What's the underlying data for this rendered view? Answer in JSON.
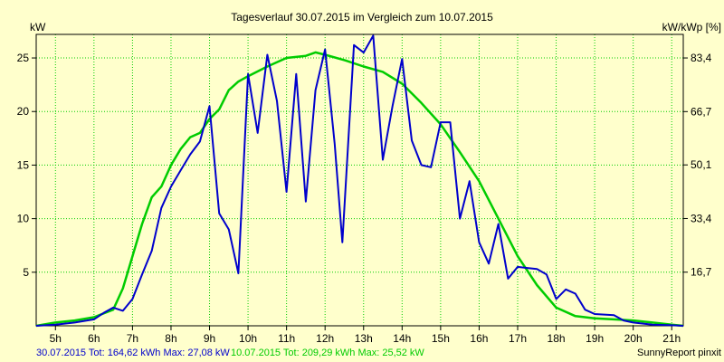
{
  "chart_data": {
    "type": "line",
    "title": "Tagesverlauf 30.07.2015 im Vergleich zum 10.07.2015",
    "ylabel_left": "kW",
    "ylabel_right": "kW/kWp [%]",
    "xlim": [
      4.5,
      21.3
    ],
    "ylim": [
      0,
      27.2
    ],
    "grid": true,
    "x_ticks": [
      5,
      6,
      7,
      8,
      9,
      10,
      11,
      12,
      13,
      14,
      15,
      16,
      17,
      18,
      19,
      20,
      21
    ],
    "x_tick_labels": [
      "5h",
      "6h",
      "7h",
      "8h",
      "9h",
      "10h",
      "11h",
      "12h",
      "13h",
      "14h",
      "15h",
      "16h",
      "17h",
      "18h",
      "19h",
      "20h",
      "21h"
    ],
    "y_ticks_left": [
      5,
      10,
      15,
      20,
      25
    ],
    "y_tick_labels_left": [
      "5",
      "10",
      "15",
      "20",
      "25"
    ],
    "y_ticks_right": [
      16.7,
      33.4,
      50.1,
      66.7,
      83.4
    ],
    "y_tick_labels_right": [
      "16,7",
      "33,4",
      "50,1",
      "66,7",
      "83,4"
    ],
    "right_axis_factor": 3.336,
    "series": [
      {
        "name": "30.07.2015",
        "color": "#0000cc",
        "summary": "30.07.2015 Tot: 164,62 kWh Max: 27,08 kW",
        "points": [
          [
            4.5,
            0
          ],
          [
            5.0,
            0.1
          ],
          [
            5.5,
            0.3
          ],
          [
            6.0,
            0.6
          ],
          [
            6.25,
            1.2
          ],
          [
            6.5,
            1.7
          ],
          [
            6.75,
            1.4
          ],
          [
            7.0,
            2.5
          ],
          [
            7.25,
            4.8
          ],
          [
            7.5,
            7.0
          ],
          [
            7.75,
            11.0
          ],
          [
            8.0,
            13.0
          ],
          [
            8.25,
            14.5
          ],
          [
            8.5,
            16.0
          ],
          [
            8.75,
            17.2
          ],
          [
            9.0,
            20.5
          ],
          [
            9.25,
            10.5
          ],
          [
            9.5,
            9.0
          ],
          [
            9.75,
            4.9
          ],
          [
            10.0,
            23.5
          ],
          [
            10.25,
            18.0
          ],
          [
            10.5,
            25.3
          ],
          [
            10.75,
            21.0
          ],
          [
            11.0,
            12.5
          ],
          [
            11.25,
            23.5
          ],
          [
            11.5,
            11.6
          ],
          [
            11.75,
            22.0
          ],
          [
            12.0,
            25.8
          ],
          [
            12.25,
            17.0
          ],
          [
            12.45,
            7.8
          ],
          [
            12.75,
            26.2
          ],
          [
            13.0,
            25.5
          ],
          [
            13.25,
            27.08
          ],
          [
            13.5,
            15.5
          ],
          [
            13.75,
            20.5
          ],
          [
            14.0,
            24.9
          ],
          [
            14.25,
            17.3
          ],
          [
            14.5,
            15.0
          ],
          [
            14.75,
            14.8
          ],
          [
            15.0,
            19.0
          ],
          [
            15.25,
            19.0
          ],
          [
            15.5,
            10.0
          ],
          [
            15.75,
            13.5
          ],
          [
            16.0,
            7.8
          ],
          [
            16.25,
            5.8
          ],
          [
            16.5,
            9.5
          ],
          [
            16.75,
            4.4
          ],
          [
            17.0,
            5.5
          ],
          [
            17.25,
            5.4
          ],
          [
            17.5,
            5.3
          ],
          [
            17.75,
            4.8
          ],
          [
            18.0,
            2.5
          ],
          [
            18.25,
            3.4
          ],
          [
            18.5,
            3.0
          ],
          [
            18.75,
            1.5
          ],
          [
            19.0,
            1.1
          ],
          [
            19.5,
            1.0
          ],
          [
            19.75,
            0.5
          ],
          [
            20.0,
            0.3
          ],
          [
            20.5,
            0.1
          ],
          [
            21.0,
            0.05
          ],
          [
            21.3,
            0
          ]
        ]
      },
      {
        "name": "10.07.2015",
        "color": "#00cc00",
        "summary": "10.07.2015 Tot: 209,29 kWh Max: 25,52 kW",
        "points": [
          [
            4.5,
            0
          ],
          [
            5.0,
            0.3
          ],
          [
            5.5,
            0.5
          ],
          [
            6.0,
            0.8
          ],
          [
            6.5,
            1.5
          ],
          [
            6.75,
            3.5
          ],
          [
            7.0,
            6.5
          ],
          [
            7.25,
            9.5
          ],
          [
            7.5,
            12.0
          ],
          [
            7.75,
            13.0
          ],
          [
            8.0,
            15.0
          ],
          [
            8.25,
            16.5
          ],
          [
            8.5,
            17.6
          ],
          [
            8.75,
            18.0
          ],
          [
            9.0,
            19.3
          ],
          [
            9.25,
            20.2
          ],
          [
            9.5,
            22.0
          ],
          [
            9.75,
            22.8
          ],
          [
            10.0,
            23.3
          ],
          [
            10.5,
            24.2
          ],
          [
            11.0,
            25.0
          ],
          [
            11.5,
            25.2
          ],
          [
            11.75,
            25.52
          ],
          [
            12.0,
            25.3
          ],
          [
            12.5,
            24.8
          ],
          [
            13.0,
            24.2
          ],
          [
            13.5,
            23.7
          ],
          [
            14.0,
            22.6
          ],
          [
            14.5,
            20.8
          ],
          [
            15.0,
            18.8
          ],
          [
            15.5,
            16.2
          ],
          [
            16.0,
            13.5
          ],
          [
            16.5,
            10.0
          ],
          [
            17.0,
            6.5
          ],
          [
            17.5,
            3.8
          ],
          [
            18.0,
            1.7
          ],
          [
            18.5,
            0.9
          ],
          [
            19.0,
            0.7
          ],
          [
            19.5,
            0.6
          ],
          [
            20.0,
            0.5
          ],
          [
            20.5,
            0.3
          ],
          [
            21.0,
            0.1
          ],
          [
            21.3,
            0
          ]
        ]
      }
    ],
    "footer_right": "SunnyReport pinxit"
  },
  "colors": {
    "background": "#ffffcc",
    "grid": "#00cc00",
    "axis": "#000000"
  }
}
